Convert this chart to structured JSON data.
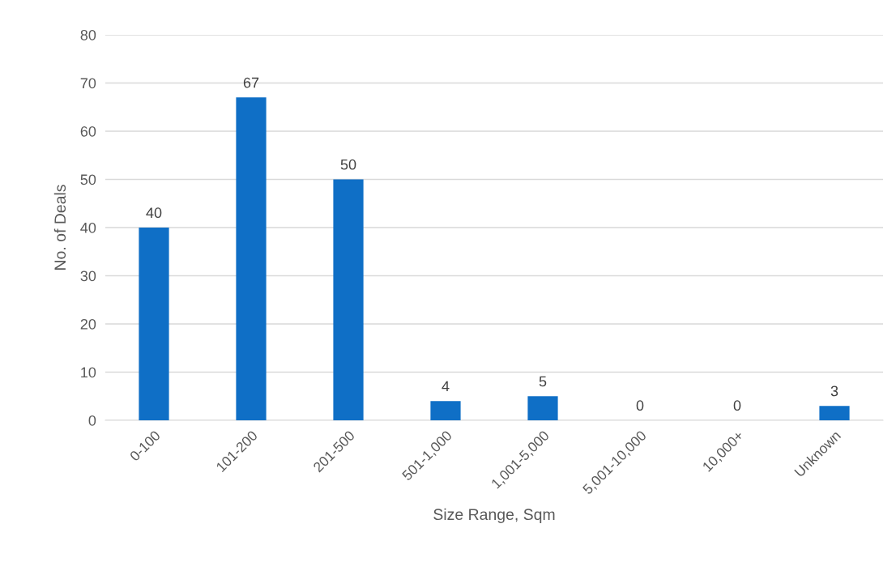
{
  "chart_data": {
    "type": "bar",
    "xlabel": "Size Range, Sqm",
    "ylabel": "No. of Deals",
    "categories": [
      "0-100",
      "101-200",
      "201-500",
      "501-1,000",
      "1,001-5,000",
      "5,001-10,000",
      "10,000+",
      "Unknown"
    ],
    "values": [
      40,
      67,
      50,
      4,
      5,
      0,
      0,
      3
    ],
    "color": "#0f6fc6",
    "ylim": [
      0,
      80
    ],
    "yticks": [
      0,
      10,
      20,
      30,
      40,
      50,
      60,
      70,
      80
    ],
    "grid": "y",
    "data_labels": true
  }
}
